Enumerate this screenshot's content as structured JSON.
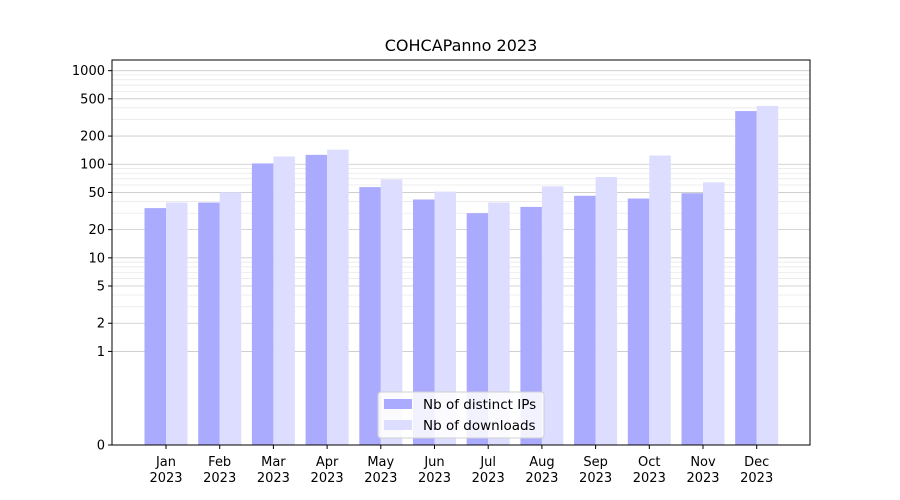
{
  "chart_data": {
    "type": "bar",
    "title": "COHCAPanno 2023",
    "xlabel": "",
    "ylabel": "",
    "y_scale": "symlog",
    "ylim": [
      0,
      1300
    ],
    "y_ticks": [
      0,
      1,
      2,
      5,
      10,
      20,
      50,
      100,
      200,
      500,
      1000
    ],
    "grid": true,
    "legend_position": "lower-center",
    "categories": [
      {
        "month": "Jan",
        "year": "2023"
      },
      {
        "month": "Feb",
        "year": "2023"
      },
      {
        "month": "Mar",
        "year": "2023"
      },
      {
        "month": "Apr",
        "year": "2023"
      },
      {
        "month": "May",
        "year": "2023"
      },
      {
        "month": "Jun",
        "year": "2023"
      },
      {
        "month": "Jul",
        "year": "2023"
      },
      {
        "month": "Aug",
        "year": "2023"
      },
      {
        "month": "Sep",
        "year": "2023"
      },
      {
        "month": "Oct",
        "year": "2023"
      },
      {
        "month": "Nov",
        "year": "2023"
      },
      {
        "month": "Dec",
        "year": "2023"
      }
    ],
    "series": [
      {
        "name": "Nb of distinct IPs",
        "color": "#aaaaff",
        "values": [
          34,
          39,
          102,
          126,
          57,
          42,
          30,
          35,
          46,
          43,
          49,
          370
        ]
      },
      {
        "name": "Nb of downloads",
        "color": "#ddddff",
        "values": [
          39,
          50,
          121,
          143,
          69,
          51,
          39,
          58,
          73,
          124,
          64,
          420
        ]
      }
    ]
  }
}
